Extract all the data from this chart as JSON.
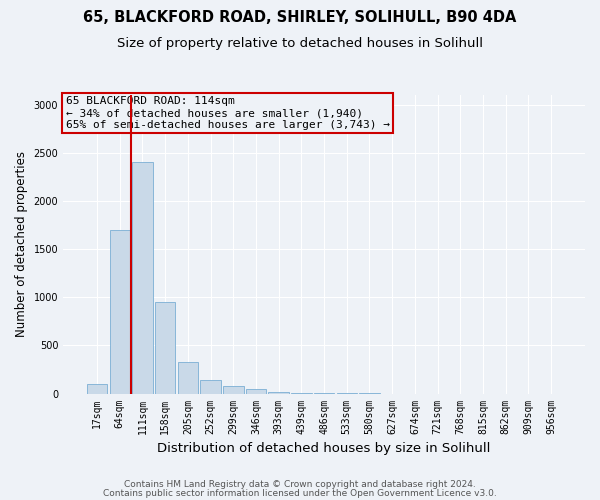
{
  "title1": "65, BLACKFORD ROAD, SHIRLEY, SOLIHULL, B90 4DA",
  "title2": "Size of property relative to detached houses in Solihull",
  "xlabel": "Distribution of detached houses by size in Solihull",
  "ylabel": "Number of detached properties",
  "bar_labels": [
    "17sqm",
    "64sqm",
    "111sqm",
    "158sqm",
    "205sqm",
    "252sqm",
    "299sqm",
    "346sqm",
    "393sqm",
    "439sqm",
    "486sqm",
    "533sqm",
    "580sqm",
    "627sqm",
    "674sqm",
    "721sqm",
    "768sqm",
    "815sqm",
    "862sqm",
    "909sqm",
    "956sqm"
  ],
  "bar_values": [
    100,
    1700,
    2400,
    950,
    330,
    140,
    80,
    45,
    20,
    5,
    3,
    2,
    1,
    0,
    0,
    0,
    0,
    0,
    0,
    0,
    0
  ],
  "bar_color": "#c9d9e8",
  "bar_edge_color": "#7bafd4",
  "vline_x": 1.5,
  "vline_color": "#cc0000",
  "ylim": [
    0,
    3100
  ],
  "yticks": [
    0,
    500,
    1000,
    1500,
    2000,
    2500,
    3000
  ],
  "annotation_title": "65 BLACKFORD ROAD: 114sqm",
  "annotation_line1": "← 34% of detached houses are smaller (1,940)",
  "annotation_line2": "65% of semi-detached houses are larger (3,743) →",
  "annotation_box_color": "#cc0000",
  "background_color": "#eef2f7",
  "footer1": "Contains HM Land Registry data © Crown copyright and database right 2024.",
  "footer2": "Contains public sector information licensed under the Open Government Licence v3.0.",
  "grid_color": "#ffffff",
  "title1_fontsize": 10.5,
  "title2_fontsize": 9.5,
  "xlabel_fontsize": 9.5,
  "ylabel_fontsize": 8.5,
  "tick_fontsize": 7,
  "footer_fontsize": 6.5,
  "annotation_fontsize": 8
}
